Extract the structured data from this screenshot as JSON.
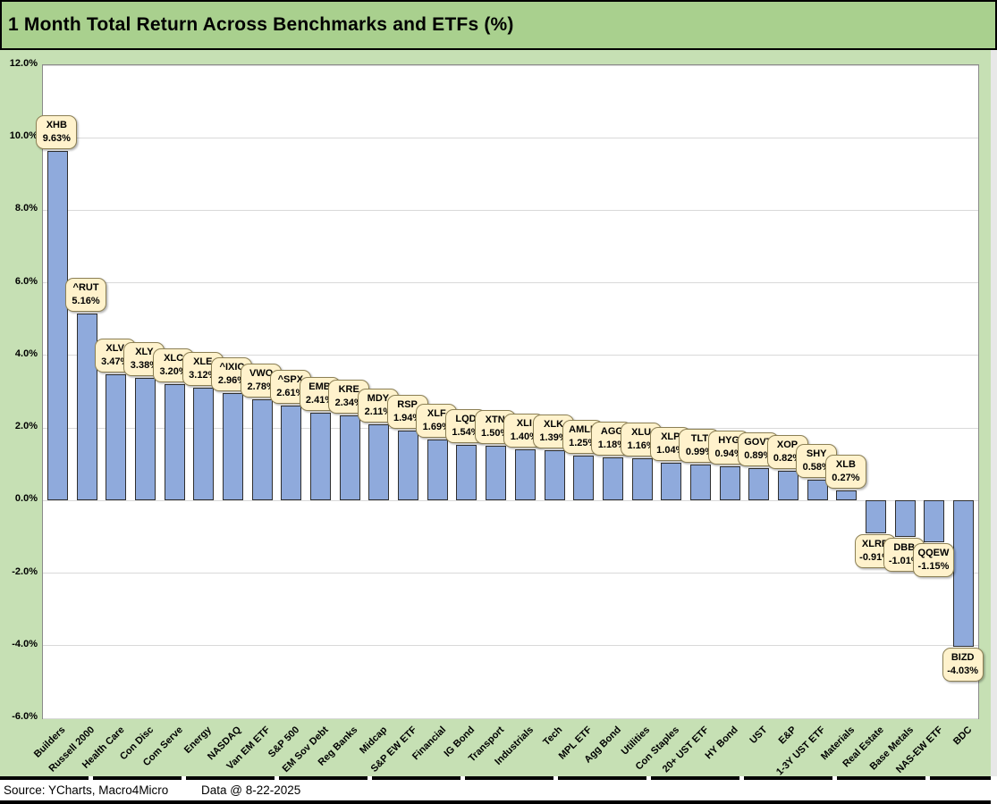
{
  "title": "1 Month Total Return Across Benchmarks and ETFs (%)",
  "footer": {
    "source": "Source: YCharts, Macro4Micro",
    "data_date": "Data @ 8-22-2025"
  },
  "colors": {
    "title_bar_bg": "#a9d08e",
    "chart_bg": "#c6e0b4",
    "plot_bg": "#ffffff",
    "gridline": "#d9d9d9",
    "bar_fill": "#8faadc",
    "bar_border": "#2f2f2f",
    "callout_bg": "#fff2cc",
    "callout_border": "#8c8055",
    "text": "#000000"
  },
  "chart_data": {
    "type": "bar",
    "title": "1 Month Total Return Across Benchmarks and ETFs (%)",
    "xlabel": "",
    "ylabel": "",
    "ylim": [
      -6,
      12
    ],
    "ytick_step": 2,
    "ytick_format": "percent_1dp",
    "grid": true,
    "legend": "none",
    "categories": [
      "Builders",
      "Russell 2000",
      "Health Care",
      "Con Disc",
      "Com Serve",
      "Energy",
      "NASDAQ",
      "Van EM ETF",
      "S&P 500",
      "EM Sov Debt",
      "Reg Banks",
      "Midcap",
      "S&P EW ETF",
      "Financial",
      "IG Bond",
      "Transport",
      "Industrials",
      "Tech",
      "MPL ETF",
      "Agg Bond",
      "Utilities",
      "Con Staples",
      "20+ UST ETF",
      "HY Bond",
      "UST",
      "E&P",
      "1-3Y UST ETF",
      "Materials",
      "Real Estate",
      "Base Metals",
      "NAS-EW ETF",
      "BDC"
    ],
    "tickers": [
      "XHB",
      "^RUT",
      "XLV",
      "XLY",
      "XLC",
      "XLE",
      "^IXIC",
      "VWO",
      "^SPX",
      "EMB",
      "KRE",
      "MDY",
      "RSP",
      "XLF",
      "LQD",
      "XTN",
      "XLI",
      "XLK",
      "AMLP",
      "AGG",
      "XLU",
      "XLP",
      "TLT",
      "HYG",
      "GOVT",
      "XOP",
      "SHY",
      "XLB",
      "XLRE",
      "DBB",
      "QQEW",
      "BIZD"
    ],
    "values": [
      9.63,
      5.16,
      3.47,
      3.38,
      3.2,
      3.12,
      2.96,
      2.78,
      2.61,
      2.41,
      2.34,
      2.11,
      1.94,
      1.69,
      1.54,
      1.5,
      1.4,
      1.39,
      1.25,
      1.18,
      1.16,
      1.04,
      0.99,
      0.94,
      0.89,
      0.82,
      0.58,
      0.27,
      -0.91,
      -1.01,
      -1.15,
      -4.03
    ],
    "data_label_style": "rounded callout above bar (below bar when negative), ticker on line 1, percent on line 2"
  }
}
